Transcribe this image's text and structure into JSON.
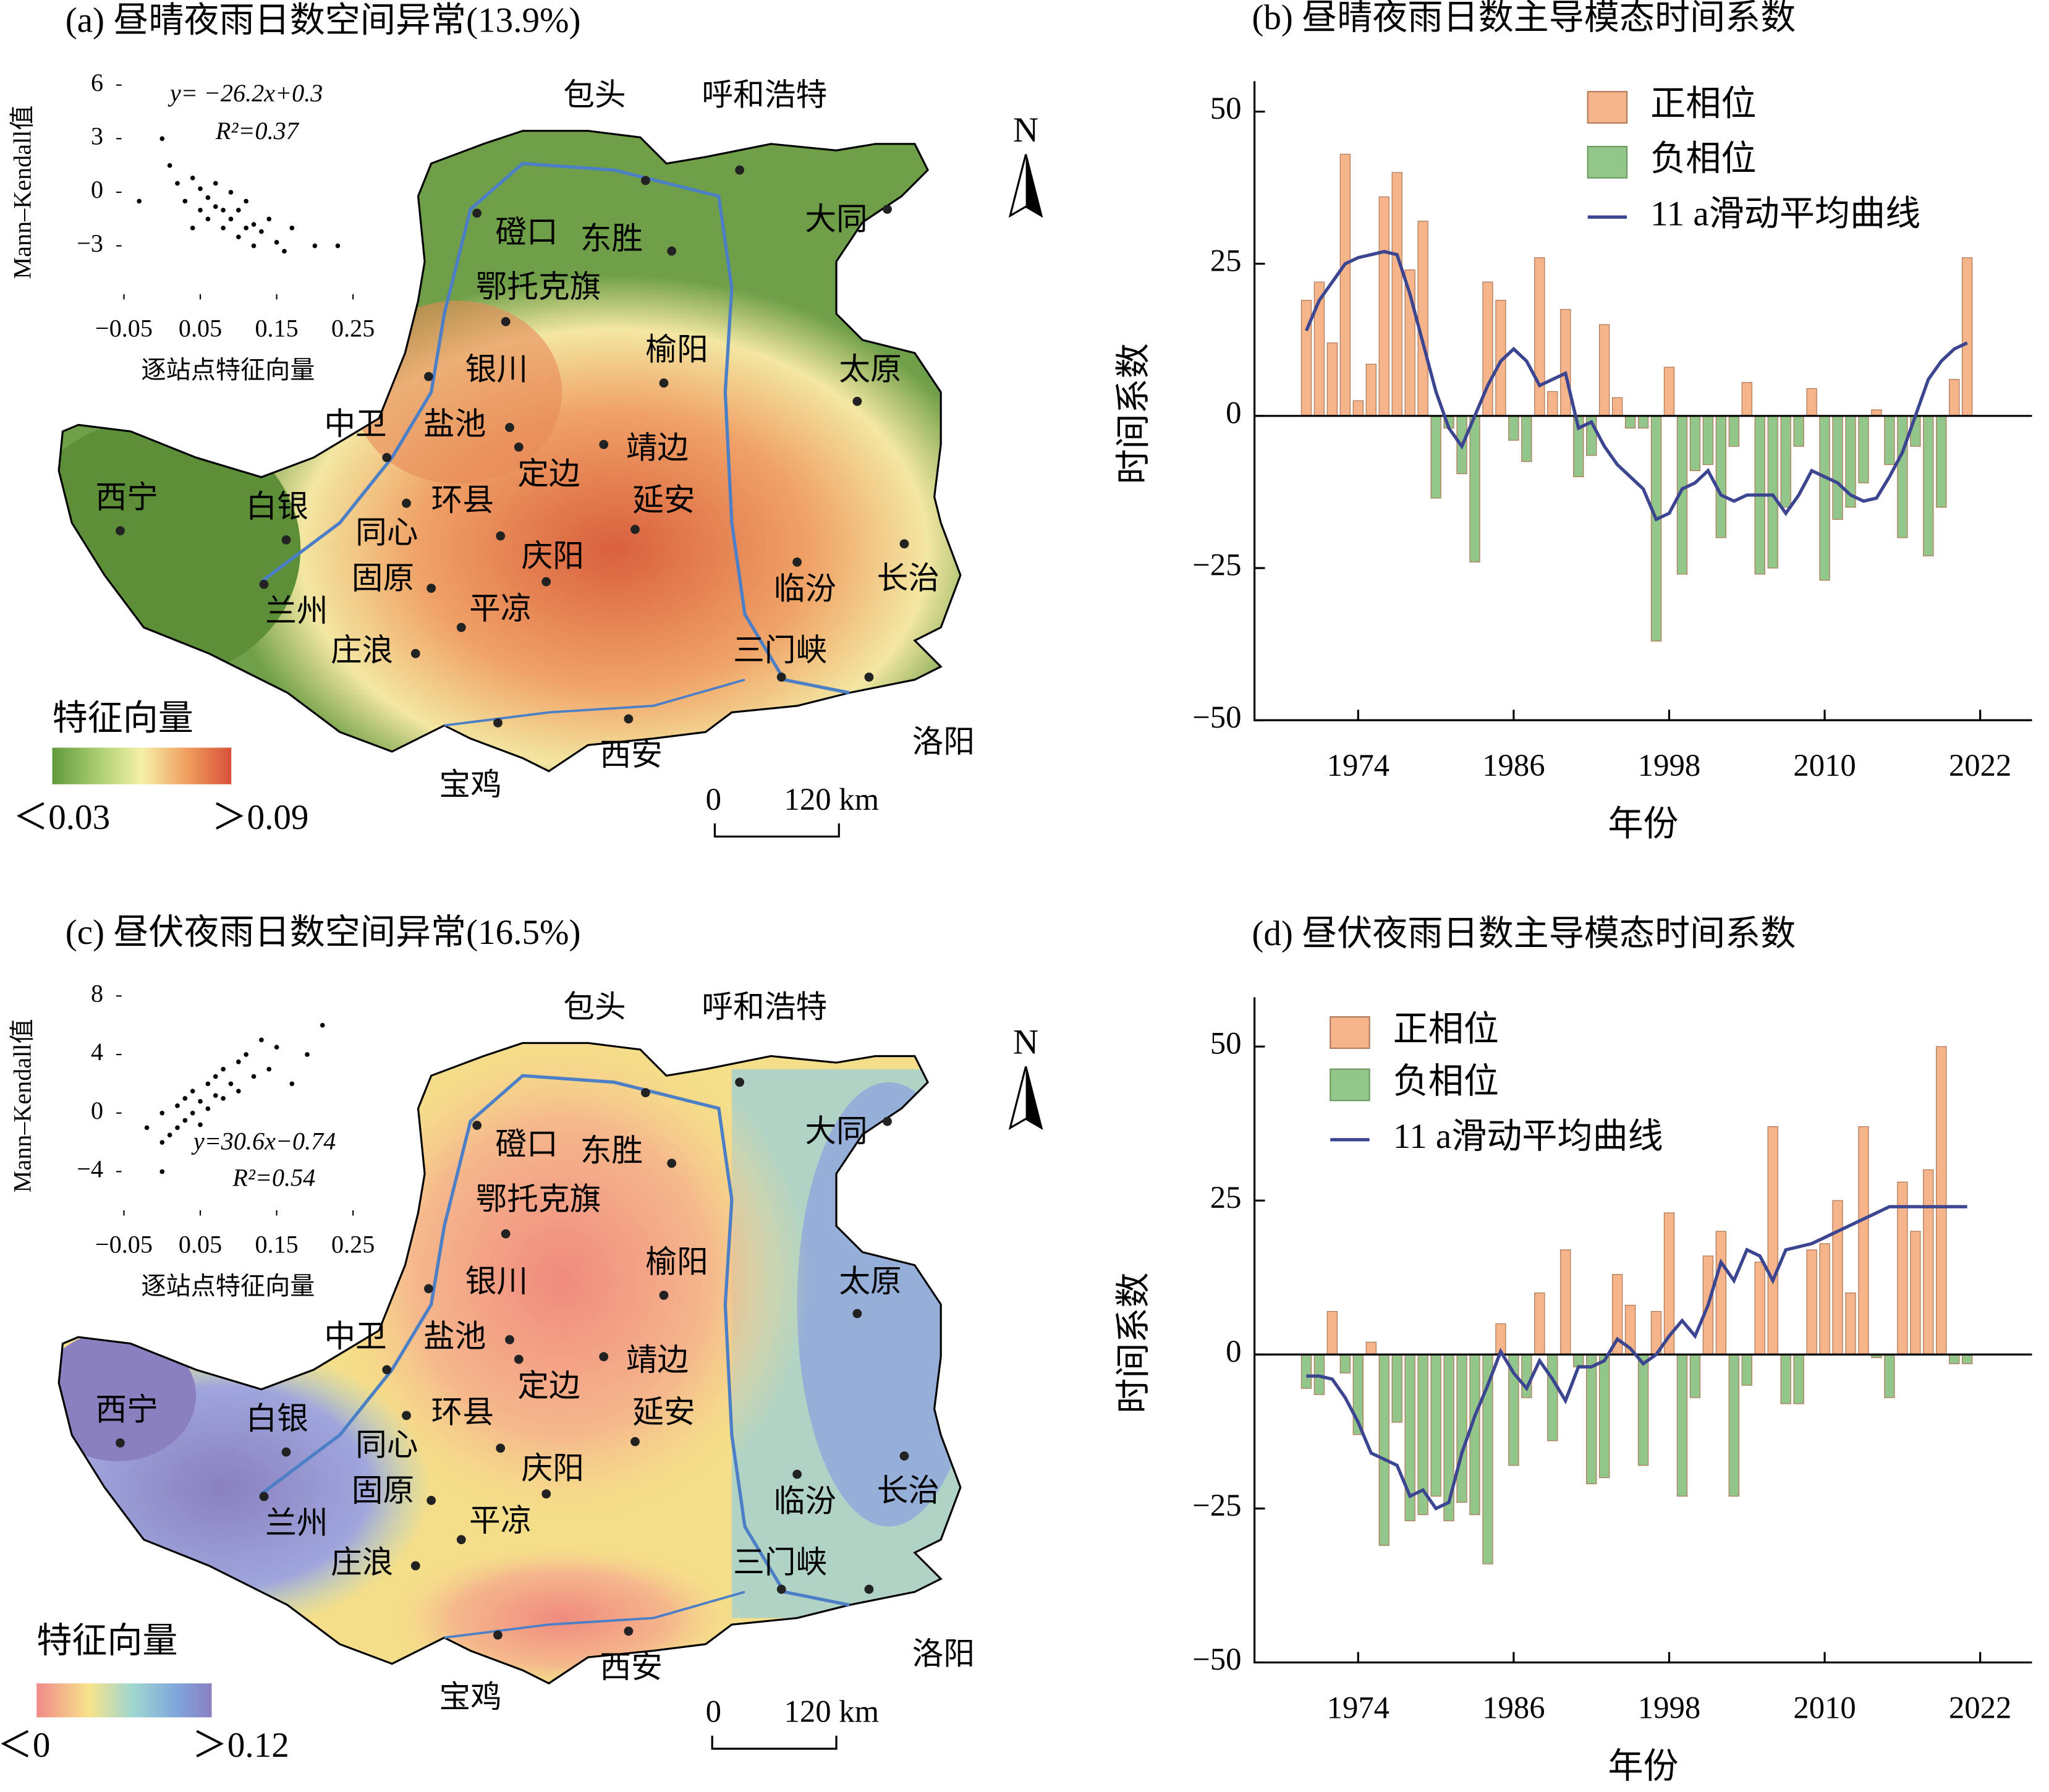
{
  "chart_data": [
    {
      "type": "bar",
      "title": "(b) 昼晴夜雨日数主导模态时间系数",
      "x_label": "年份",
      "y_label": "时间系数",
      "x": [
        1970,
        1971,
        1972,
        1973,
        1974,
        1975,
        1976,
        1977,
        1978,
        1979,
        1980,
        1981,
        1982,
        1983,
        1984,
        1985,
        1986,
        1987,
        1988,
        1989,
        1990,
        1991,
        1992,
        1993,
        1994,
        1995,
        1996,
        1997,
        1998,
        1999,
        2000,
        2001,
        2002,
        2003,
        2004,
        2005,
        2006,
        2007,
        2008,
        2009,
        2010,
        2011,
        2012,
        2013,
        2014,
        2015,
        2016,
        2017,
        2018,
        2019,
        2020,
        2021
      ],
      "values": [
        19,
        22,
        12,
        43,
        2.5,
        8.5,
        36,
        40,
        24,
        32,
        -13.5,
        -2,
        -9.5,
        -24,
        22,
        19,
        -4,
        -7.5,
        26,
        4,
        17.5,
        -10,
        -6.5,
        15,
        3,
        -2,
        -2,
        -37,
        8,
        -26,
        -9,
        -8,
        -20,
        -5,
        5.5,
        -26,
        -25,
        -15,
        -5,
        4.5,
        -27,
        -17,
        -15,
        -11,
        1,
        -8,
        -20,
        -5,
        -23,
        -15,
        6,
        26
      ],
      "positive": {
        "name": "正相位",
        "color": "#f5b489"
      },
      "negative": {
        "name": "负相位",
        "color": "#92c68a"
      },
      "line": {
        "name": "11 a滑动平均曲线",
        "color": "#3b4590",
        "values": [
          14,
          19,
          22,
          25,
          26,
          26.5,
          27,
          26.5,
          20,
          12,
          4,
          -2,
          -5,
          0,
          5,
          9,
          11,
          9,
          5,
          6,
          7,
          -2,
          -1,
          -5,
          -8,
          -10,
          -12,
          -17,
          -16,
          -12,
          -11,
          -9,
          -13,
          -14,
          -13,
          -13,
          -13,
          -16,
          -13,
          -9,
          -10,
          -11,
          -13,
          -14,
          -13.5,
          -10,
          -6,
          0,
          6,
          9,
          11,
          12
        ]
      },
      "xlim": [
        1966,
        2026
      ],
      "xticks": [
        1974,
        1986,
        1998,
        2010,
        2022
      ],
      "ylim": [
        -50,
        55
      ],
      "yticks": [
        {
          "value": -50,
          "label": "−50"
        },
        {
          "value": -25,
          "label": "−25"
        },
        0,
        25,
        50
      ]
    },
    {
      "type": "bar",
      "title": "(d) 昼伏夜雨日数主导模态时间系数",
      "x_label": "年份",
      "y_label": "时间系数",
      "x": [
        1970,
        1971,
        1972,
        1973,
        1974,
        1975,
        1976,
        1977,
        1978,
        1979,
        1980,
        1981,
        1982,
        1983,
        1984,
        1985,
        1986,
        1987,
        1988,
        1989,
        1990,
        1991,
        1992,
        1993,
        1994,
        1995,
        1996,
        1997,
        1998,
        1999,
        2000,
        2001,
        2002,
        2003,
        2004,
        2005,
        2006,
        2007,
        2008,
        2009,
        2010,
        2011,
        2012,
        2013,
        2014,
        2015,
        2016,
        2017,
        2018,
        2019,
        2020,
        2021
      ],
      "values": [
        -5.5,
        -6.5,
        7,
        -3,
        -13,
        2,
        -31,
        -11,
        -27,
        -26,
        -23,
        -27,
        -24,
        -26,
        -34,
        5,
        -18,
        -7,
        10,
        -14,
        17,
        -2,
        -21,
        -20,
        13,
        8,
        -18,
        7,
        23,
        -23,
        -7,
        16,
        20,
        -23,
        -5,
        15,
        37,
        -8,
        -8,
        17,
        18,
        25,
        10,
        37,
        -0.5,
        -7,
        28,
        20,
        30,
        50,
        -1.5,
        -1.5
      ],
      "positive": {
        "name": "正相位",
        "color": "#f5b489"
      },
      "negative": {
        "name": "负相位",
        "color": "#92c68a"
      },
      "line": {
        "name": "11 a滑动平均曲线",
        "color": "#3b4590",
        "values": [
          -3.5,
          -3.5,
          -4,
          -7,
          -11,
          -16,
          -17,
          -18,
          -23,
          -22,
          -25,
          -24,
          -16,
          -10,
          -5,
          0.5,
          -3,
          -5.5,
          -1,
          -4,
          -7.5,
          -2,
          -2,
          -1,
          2.5,
          1,
          -1.5,
          0,
          3,
          5.5,
          3,
          8,
          15,
          12,
          17,
          16,
          12,
          17,
          17.5,
          18,
          19,
          20,
          21,
          22,
          23,
          24,
          24,
          24,
          24,
          24,
          24,
          24
        ]
      },
      "xlim": [
        1966,
        2026
      ],
      "xticks": [
        1974,
        1986,
        1998,
        2010,
        2022
      ],
      "ylim": [
        -50,
        58
      ],
      "yticks": [
        {
          "value": -50,
          "label": "−50"
        },
        {
          "value": -25,
          "label": "−25"
        },
        0,
        25,
        50
      ]
    },
    {
      "type": "scatter",
      "equation": "y= −26.2x+0.3",
      "r2": "R²=0.37",
      "x_label": "逐站点特征向量",
      "y_label": "Mann–Kendall值",
      "color": "#000000",
      "x": [
        0.01,
        0.02,
        0.03,
        0.04,
        0.05,
        0.05,
        0.06,
        0.06,
        0.07,
        0.07,
        0.08,
        0.08,
        0.09,
        0.09,
        0.1,
        0.1,
        0.11,
        0.11,
        0.12,
        0.12,
        0.13,
        0.14,
        0.15,
        0.16,
        0.17,
        0.0,
        -0.03,
        0.2,
        0.23,
        0.04
      ],
      "y": [
        1.5,
        0.5,
        -0.5,
        0.8,
        -1,
        0.2,
        -1.5,
        -0.3,
        -0.8,
        0.5,
        -2,
        -1,
        -1.5,
        0,
        -2.5,
        -1,
        -2,
        -0.5,
        -1.8,
        -3,
        -2.2,
        -1.5,
        -2.8,
        -3.3,
        -2,
        3,
        -0.5,
        -3,
        -3,
        -2
      ],
      "xlim": [
        -0.06,
        0.26
      ],
      "xticks": [
        {
          "value": -0.05,
          "label": "−0.05"
        },
        0.05,
        0.15,
        0.25
      ],
      "ylim": [
        -6,
        6
      ],
      "yticks": [
        6,
        3,
        0,
        {
          "value": -3,
          "label": "−3"
        }
      ]
    },
    {
      "type": "scatter",
      "equation": "y=30.6x−0.74",
      "r2": "R²=0.54",
      "x_label": "逐站点特征向量",
      "y_label": "Mann–Kendall值",
      "color": "#000000",
      "x": [
        -0.02,
        0,
        0,
        0.01,
        0.02,
        0.02,
        0.03,
        0.03,
        0.04,
        0.04,
        0.05,
        0.05,
        0.06,
        0.06,
        0.07,
        0.07,
        0.08,
        0.08,
        0.09,
        0.1,
        0.1,
        0.11,
        0.12,
        0.13,
        0.14,
        0.15,
        0.17,
        0.19,
        0.21,
        0.0
      ],
      "y": [
        -1,
        -2,
        0,
        -1.5,
        0.5,
        -1,
        1,
        -0.5,
        0,
        1.5,
        0.8,
        -0.8,
        2,
        0.3,
        1.2,
        2.5,
        1,
        3,
        2,
        3.5,
        1.5,
        4,
        2.5,
        5,
        3,
        4.5,
        2,
        4,
        6,
        -4
      ],
      "xlim": [
        -0.06,
        0.26
      ],
      "xticks": [
        {
          "value": -0.05,
          "label": "−0.05"
        },
        0.05,
        0.15,
        0.25
      ],
      "ylim": [
        -7,
        8
      ],
      "yticks": [
        8,
        4,
        0,
        {
          "value": -4,
          "label": "−4"
        }
      ]
    }
  ],
  "maps": [
    {
      "title": "(a) 昼晴夜雨日数空间异常(13.9%)",
      "north": "N",
      "legend_title": "特征向量",
      "legend_min": "＜0.03",
      "legend_max": "＞0.09",
      "scale_start": "0",
      "scale_end": "120 km",
      "cities": [
        "包头",
        "呼和浩特",
        "磴口",
        "东胜",
        "大同",
        "鄂托克旗",
        "榆阳",
        "银川",
        "太原",
        "中卫",
        "盐池",
        "定边",
        "靖边",
        "西宁",
        "白银",
        "环县",
        "延安",
        "同心",
        "固原",
        "庆阳",
        "长治",
        "临汾",
        "兰州",
        "平凉",
        "庄浪",
        "三门峡",
        "宝鸡",
        "西安",
        "洛阳"
      ]
    },
    {
      "title": "(c) 昼伏夜雨日数空间异常(16.5%)",
      "north": "N",
      "legend_title": "特征向量",
      "legend_min": "＜0",
      "legend_max": "＞0.12",
      "scale_start": "0",
      "scale_end": "120 km",
      "cities": [
        "包头",
        "呼和浩特",
        "磴口",
        "东胜",
        "大同",
        "鄂托克旗",
        "榆阳",
        "银川",
        "太原",
        "中卫",
        "盐池",
        "定边",
        "靖边",
        "西宁",
        "白银",
        "环县",
        "延安",
        "同心",
        "固原",
        "庆阳",
        "长治",
        "临汾",
        "兰州",
        "平凉",
        "庄浪",
        "三门峡",
        "宝鸡",
        "西安",
        "洛阳"
      ]
    }
  ]
}
